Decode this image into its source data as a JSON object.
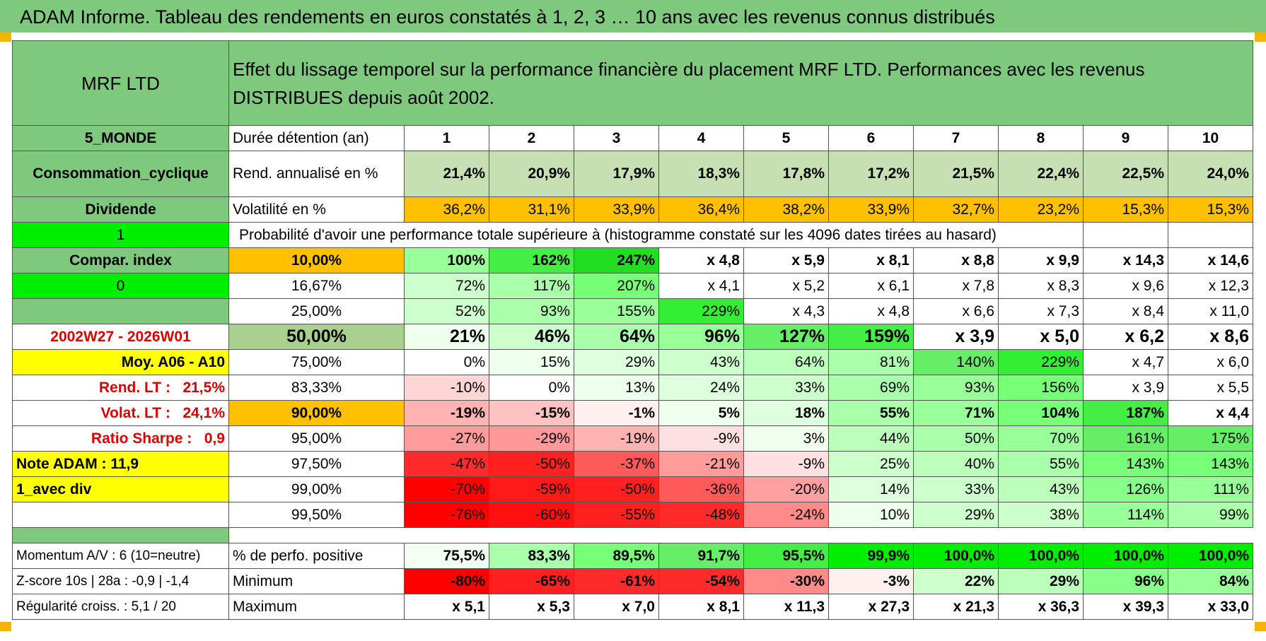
{
  "title": "ADAM Informe. Tableau des rendements en euros constatés à 1, 2, 3 … 10 ans avec les revenus connus distribués",
  "header": {
    "fund_name": "MRF LTD",
    "description": "Effet du lissage temporel sur la performance financière du placement MRF LTD. Performances avec les revenus DISTRIBUES depuis août 2002."
  },
  "side": {
    "zone": "5_MONDE",
    "sector": "Consommation_cyclique",
    "dividend": "Dividende",
    "one": "1",
    "compar_index": "Compar. index",
    "zero": "0",
    "period": "2002W27 - 2026W01",
    "moy": "Moy. A06 - A10",
    "rend_lt": "Rend. LT :",
    "rend_lt_value": "21,5%",
    "volat_lt": "Volat. LT :",
    "volat_lt_value": "24,1%",
    "sharpe": "Ratio Sharpe :",
    "sharpe_value": "0,9",
    "note": "Note ADAM : 11,9",
    "avec_div": "1_avec div"
  },
  "duration_label": "Durée détention (an)",
  "durations": [
    "1",
    "2",
    "3",
    "4",
    "5",
    "6",
    "7",
    "8",
    "9",
    "10"
  ],
  "rend_label": "Rend. annualisé en %",
  "rend": [
    "21,4%",
    "20,9%",
    "17,9%",
    "18,3%",
    "17,8%",
    "17,2%",
    "21,5%",
    "22,4%",
    "22,5%",
    "24,0%"
  ],
  "vol_label": "Volatilité en %",
  "vol": [
    "36,2%",
    "31,1%",
    "33,9%",
    "36,4%",
    "38,2%",
    "33,9%",
    "32,7%",
    "23,2%",
    "15,3%",
    "15,3%"
  ],
  "prob_label": "Probabilité d'avoir une performance totale supérieure à (histogramme constaté sur les 4096 dates tirées au hasard)",
  "prob_rows": [
    {
      "pct": "10,00%",
      "vals": [
        "100%",
        "162%",
        "247%",
        "x 4,8",
        "x 5,9",
        "x 8,1",
        "x 8,8",
        "x 9,9",
        "x 14,3",
        "x 14,6"
      ]
    },
    {
      "pct": "16,67%",
      "vals": [
        "72%",
        "117%",
        "207%",
        "x 4,1",
        "x 5,2",
        "x 6,1",
        "x 7,8",
        "x 8,3",
        "x 9,6",
        "x 12,3"
      ]
    },
    {
      "pct": "25,00%",
      "vals": [
        "52%",
        "93%",
        "155%",
        "229%",
        "x 4,3",
        "x 4,8",
        "x 6,6",
        "x 7,3",
        "x 8,4",
        "x 11,0"
      ]
    },
    {
      "pct": "50,00%",
      "vals": [
        "21%",
        "46%",
        "64%",
        "96%",
        "127%",
        "159%",
        "x 3,9",
        "x 5,0",
        "x 6,2",
        "x 8,6"
      ]
    },
    {
      "pct": "75,00%",
      "vals": [
        "0%",
        "15%",
        "29%",
        "43%",
        "64%",
        "81%",
        "140%",
        "229%",
        "x 4,7",
        "x 6,0"
      ]
    },
    {
      "pct": "83,33%",
      "vals": [
        "-10%",
        "0%",
        "13%",
        "24%",
        "33%",
        "69%",
        "93%",
        "156%",
        "x 3,9",
        "x 5,5"
      ]
    },
    {
      "pct": "90,00%",
      "vals": [
        "-19%",
        "-15%",
        "-1%",
        "5%",
        "18%",
        "55%",
        "71%",
        "104%",
        "187%",
        "x 4,4"
      ]
    },
    {
      "pct": "95,00%",
      "vals": [
        "-27%",
        "-29%",
        "-19%",
        "-9%",
        "3%",
        "44%",
        "50%",
        "70%",
        "161%",
        "175%"
      ]
    },
    {
      "pct": "97,50%",
      "vals": [
        "-47%",
        "-50%",
        "-37%",
        "-21%",
        "-9%",
        "25%",
        "40%",
        "55%",
        "143%",
        "143%"
      ]
    },
    {
      "pct": "99,00%",
      "vals": [
        "-70%",
        "-59%",
        "-50%",
        "-36%",
        "-20%",
        "14%",
        "33%",
        "43%",
        "126%",
        "111%"
      ]
    },
    {
      "pct": "99,50%",
      "vals": [
        "-76%",
        "-60%",
        "-55%",
        "-48%",
        "-24%",
        "10%",
        "29%",
        "38%",
        "114%",
        "99%"
      ]
    }
  ],
  "footer": {
    "momentum": "Momentum A/V : 6 (10=neutre)",
    "zscore": "Z-score 10s | 28a : -0,9 | -1,4",
    "regularite": "Régularité croiss. : 5,1 / 20",
    "pos_label": "% de perfo. positive",
    "pos": [
      "75,5%",
      "83,3%",
      "89,5%",
      "91,7%",
      "95,5%",
      "99,9%",
      "100,0%",
      "100,0%",
      "100,0%",
      "100,0%"
    ],
    "min_label": "Minimum",
    "min": [
      "-80%",
      "-65%",
      "-61%",
      "-54%",
      "-30%",
      "-3%",
      "22%",
      "29%",
      "96%",
      "84%"
    ],
    "max_label": "Maximum",
    "max": [
      "x 5,1",
      "x 5,3",
      "x 7,0",
      "x 8,1",
      "x 11,3",
      "x 27,3",
      "x 21,3",
      "x 36,3",
      "x 39,3",
      "x 33,0"
    ]
  },
  "colors": {
    "title_bg": "#7ec97e",
    "accent_orange": "#ffc000",
    "accent_yellow": "#ffff00",
    "bright_green": "#00ee00",
    "red_text": "#e00000"
  }
}
